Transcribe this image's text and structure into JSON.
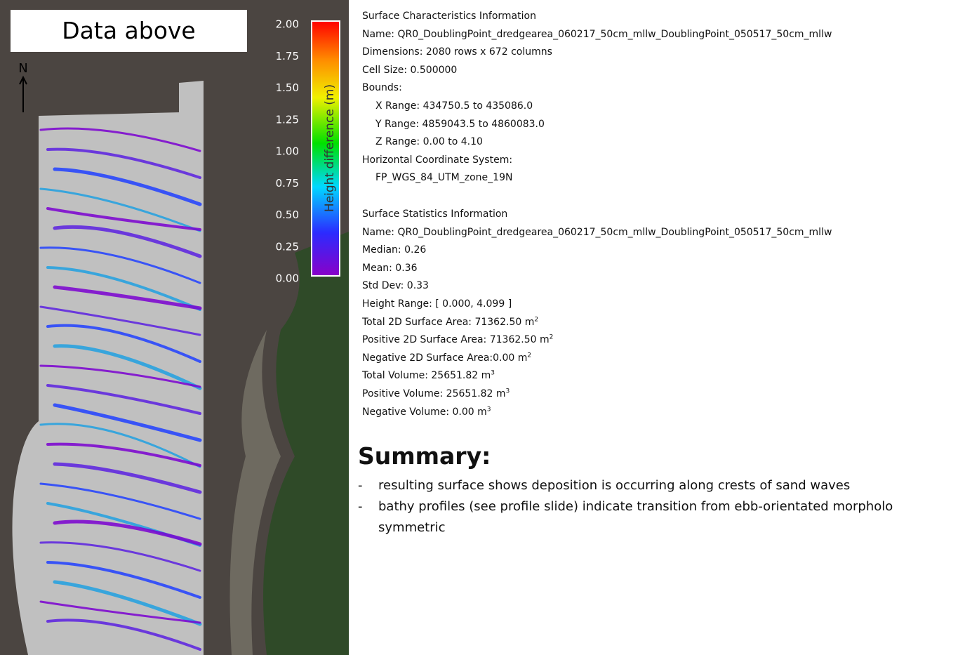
{
  "map": {
    "title": "Data above",
    "north": "N",
    "colorbar": {
      "label": "Height difference (m)",
      "ticks": [
        {
          "value": 2,
          "label": "2.00"
        },
        {
          "value": 1.75,
          "label": "1.75"
        },
        {
          "value": 1.5,
          "label": "1.50"
        },
        {
          "value": 1.25,
          "label": "1.25"
        },
        {
          "value": 1,
          "label": "1.00"
        },
        {
          "value": 0.75,
          "label": "0.75"
        },
        {
          "value": 0.5,
          "label": "0.50"
        },
        {
          "value": 0.25,
          "label": "0.25"
        },
        {
          "value": 0,
          "label": "0.00"
        }
      ]
    }
  },
  "surface_characteristics": [
    "Surface Characteristics Information",
    "Name:  QR0_DoublingPoint_dredgearea_060217_50cm_mllw_DoublingPoint_050517_50cm_mllw",
    "Dimensions:  2080 rows x 672 columns",
    "Cell Size: 0.500000",
    "Bounds:",
    "X Range:  434750.5 to 435086.0",
    "Y Range:  4859043.5 to 4860083.0",
    "Z Range:  0.00 to 4.10",
    "Horizontal Coordinate System:",
    "FP_WGS_84_UTM_zone_19N"
  ],
  "surface_statistics": [
    "Surface Statistics Information",
    "Name:  QR0_DoublingPoint_dredgearea_060217_50cm_mllw_DoublingPoint_050517_50cm_mllw",
    "Median:  0.26",
    "Mean:  0.36",
    "Std Dev:  0.33",
    "Height Range:  [ 0.000, 4.099 ]",
    {
      "text": "Total 2D Surface Area: 71362.50 m",
      "sup": "2"
    },
    {
      "text": "Positive 2D Surface Area: 71362.50 m",
      "sup": "2"
    },
    {
      "text": "Negative 2D Surface Area:0.00 m",
      "sup": "2"
    },
    {
      "text": "Total Volume:  25651.82 m",
      "sup": "3"
    },
    {
      "text": "Positive Volume: 25651.82 m",
      "sup": "3"
    },
    {
      "text": "Negative Volume: 0.00 m",
      "sup": "3"
    }
  ],
  "summary": {
    "heading": "Summary:",
    "bullet": "-",
    "items": [
      "resulting surface shows deposition is occurring along crests of sand waves",
      "bathy profiles (see profile slide) indicate transition from ebb-orientated morpholo",
      "symmetric"
    ]
  }
}
